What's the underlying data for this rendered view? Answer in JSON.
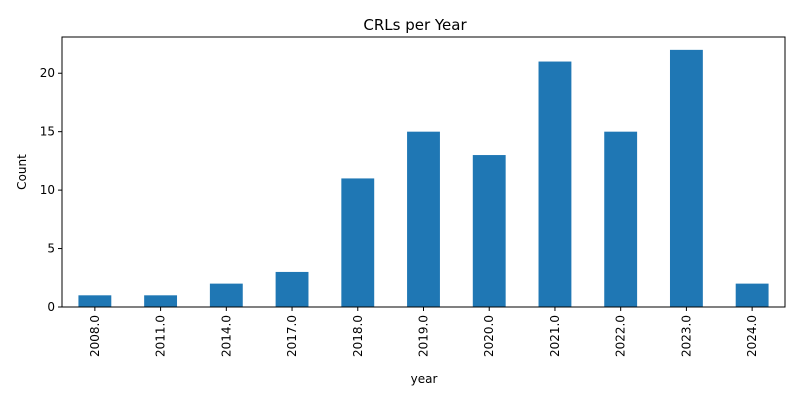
{
  "chart_data": {
    "type": "bar",
    "title": "CRLs per Year",
    "xlabel": "year",
    "ylabel": "Count",
    "categories": [
      "2008.0",
      "2011.0",
      "2014.0",
      "2017.0",
      "2018.0",
      "2019.0",
      "2020.0",
      "2021.0",
      "2022.0",
      "2023.0",
      "2024.0"
    ],
    "values": [
      1,
      1,
      2,
      3,
      11,
      15,
      13,
      21,
      15,
      22,
      2
    ],
    "ylim": [
      0,
      23.1
    ],
    "yticks": [
      0,
      5,
      10,
      15,
      20
    ],
    "bar_color": "#1f77b4",
    "grid": false,
    "legend": "none"
  }
}
